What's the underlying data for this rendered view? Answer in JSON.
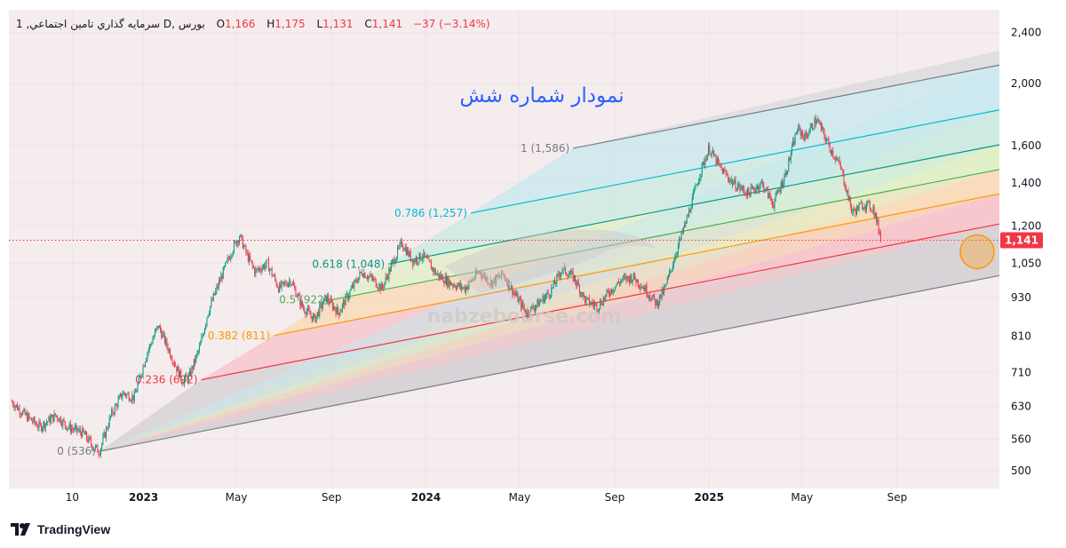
{
  "header": {
    "symbol": "1 ,سرمايه گذاري تامين اجتماعي",
    "interval": "D",
    "exchange": "بورس",
    "ohlc": [
      {
        "key": "O",
        "value": "1,166"
      },
      {
        "key": "H",
        "value": "1,175"
      },
      {
        "key": "L",
        "value": "1,131"
      },
      {
        "key": "C",
        "value": "1,141"
      }
    ],
    "change": "−37 (−3.14%)"
  },
  "annotation_title": "نمودار شماره شش",
  "watermark": {
    "text": "nabzebourse.com"
  },
  "brand": "TradingView",
  "colors": {
    "background": "#f5ecee",
    "up": "#089981",
    "down": "#f23645",
    "price_line": "#f23645",
    "highlight_circle": "#ff9800",
    "title": "#2962ff"
  },
  "price_label": "1,141",
  "chart_data": {
    "type": "candlestick",
    "scale": "log",
    "ylim": [
      470,
      2450
    ],
    "y_ticks": [
      500,
      560,
      630,
      710,
      810,
      930,
      1050,
      1200,
      1400,
      1600,
      2000,
      2400
    ],
    "y_tick_labels": [
      "500",
      "560",
      "630",
      "710",
      "810",
      "930",
      "1,050",
      "1,200",
      "1,400",
      "1,600",
      "2,000",
      "2,400"
    ],
    "x_ticks": [
      {
        "label": "10",
        "date": "2022-10-01",
        "bold": false
      },
      {
        "label": "2023",
        "date": "2023-01-01",
        "bold": true
      },
      {
        "label": "May",
        "date": "2023-05-01",
        "bold": false
      },
      {
        "label": "Sep",
        "date": "2023-09-01",
        "bold": false
      },
      {
        "label": "2024",
        "date": "2024-01-01",
        "bold": true
      },
      {
        "label": "May",
        "date": "2024-05-01",
        "bold": false
      },
      {
        "label": "Sep",
        "date": "2024-09-01",
        "bold": false
      },
      {
        "label": "2025",
        "date": "2025-01-01",
        "bold": true
      },
      {
        "label": "May",
        "date": "2025-05-01",
        "bold": false
      },
      {
        "label": "Sep",
        "date": "2025-09-01",
        "bold": false
      }
    ],
    "last_close": 1141,
    "price_path": [
      [
        "2022-07-15",
        640
      ],
      [
        "2022-08-01",
        610
      ],
      [
        "2022-08-20",
        585
      ],
      [
        "2022-09-10",
        610
      ],
      [
        "2022-09-25",
        585
      ],
      [
        "2022-10-15",
        572
      ],
      [
        "2022-10-28",
        545
      ],
      [
        "2022-11-05",
        536
      ],
      [
        "2022-11-20",
        610
      ],
      [
        "2022-12-05",
        660
      ],
      [
        "2022-12-20",
        650
      ],
      [
        "2023-01-05",
        760
      ],
      [
        "2023-01-20",
        840
      ],
      [
        "2023-02-05",
        760
      ],
      [
        "2023-02-20",
        690
      ],
      [
        "2023-03-01",
        700
      ],
      [
        "2023-03-15",
        780
      ],
      [
        "2023-03-25",
        880
      ],
      [
        "2023-04-10",
        990
      ],
      [
        "2023-04-25",
        1100
      ],
      [
        "2023-05-05",
        1160
      ],
      [
        "2023-05-15",
        1080
      ],
      [
        "2023-05-25",
        1020
      ],
      [
        "2023-06-10",
        1050
      ],
      [
        "2023-06-25",
        960
      ],
      [
        "2023-07-10",
        990
      ],
      [
        "2023-07-25",
        900
      ],
      [
        "2023-08-10",
        860
      ],
      [
        "2023-08-25",
        930
      ],
      [
        "2023-09-10",
        880
      ],
      [
        "2023-09-25",
        950
      ],
      [
        "2023-10-10",
        1020
      ],
      [
        "2023-10-25",
        990
      ],
      [
        "2023-11-05",
        960
      ],
      [
        "2023-11-20",
        1060
      ],
      [
        "2023-12-01",
        1130
      ],
      [
        "2023-12-15",
        1060
      ],
      [
        "2023-12-28",
        1080
      ],
      [
        "2024-01-15",
        1010
      ],
      [
        "2024-02-01",
        980
      ],
      [
        "2024-02-20",
        960
      ],
      [
        "2024-03-10",
        1020
      ],
      [
        "2024-03-25",
        980
      ],
      [
        "2024-04-10",
        1010
      ],
      [
        "2024-04-25",
        940
      ],
      [
        "2024-05-10",
        880
      ],
      [
        "2024-05-25",
        910
      ],
      [
        "2024-06-10",
        950
      ],
      [
        "2024-06-25",
        1030
      ],
      [
        "2024-07-10",
        1000
      ],
      [
        "2024-07-25",
        920
      ],
      [
        "2024-08-10",
        900
      ],
      [
        "2024-08-25",
        950
      ],
      [
        "2024-09-10",
        990
      ],
      [
        "2024-09-25",
        1000
      ],
      [
        "2024-10-10",
        960
      ],
      [
        "2024-10-25",
        910
      ],
      [
        "2024-11-05",
        960
      ],
      [
        "2024-11-20",
        1100
      ],
      [
        "2024-12-05",
        1250
      ],
      [
        "2024-12-20",
        1450
      ],
      [
        "2025-01-01",
        1586
      ],
      [
        "2025-01-15",
        1480
      ],
      [
        "2025-02-01",
        1400
      ],
      [
        "2025-02-20",
        1350
      ],
      [
        "2025-03-10",
        1400
      ],
      [
        "2025-03-25",
        1300
      ],
      [
        "2025-04-10",
        1450
      ],
      [
        "2025-04-25",
        1700
      ],
      [
        "2025-05-05",
        1650
      ],
      [
        "2025-05-20",
        1760
      ],
      [
        "2025-06-05",
        1600
      ],
      [
        "2025-06-20",
        1480
      ],
      [
        "2025-07-05",
        1260
      ],
      [
        "2025-07-20",
        1300
      ],
      [
        "2025-08-01",
        1280
      ],
      [
        "2025-08-12",
        1141
      ]
    ],
    "fib_channel": {
      "anchor_start": {
        "date": "2022-11-05",
        "price": 536
      },
      "anchor_end": {
        "date": "2025-01-01",
        "price": 1586
      },
      "levels": [
        {
          "ratio": 0,
          "label": "0 (536)",
          "color": "#787b86"
        },
        {
          "ratio": 0.236,
          "label": "0.236 (692)",
          "color": "#f23645"
        },
        {
          "ratio": 0.382,
          "label": "0.382 (811)",
          "color": "#ff9800"
        },
        {
          "ratio": 0.5,
          "label": "0.5 (922)",
          "color": "#4caf50"
        },
        {
          "ratio": 0.618,
          "label": "0.618 (1,048)",
          "color": "#089981"
        },
        {
          "ratio": 0.786,
          "label": "0.786 (1,257)",
          "color": "#00bcd4"
        },
        {
          "ratio": 1,
          "label": "1 (1,586)",
          "color": "#787b86"
        }
      ]
    }
  }
}
